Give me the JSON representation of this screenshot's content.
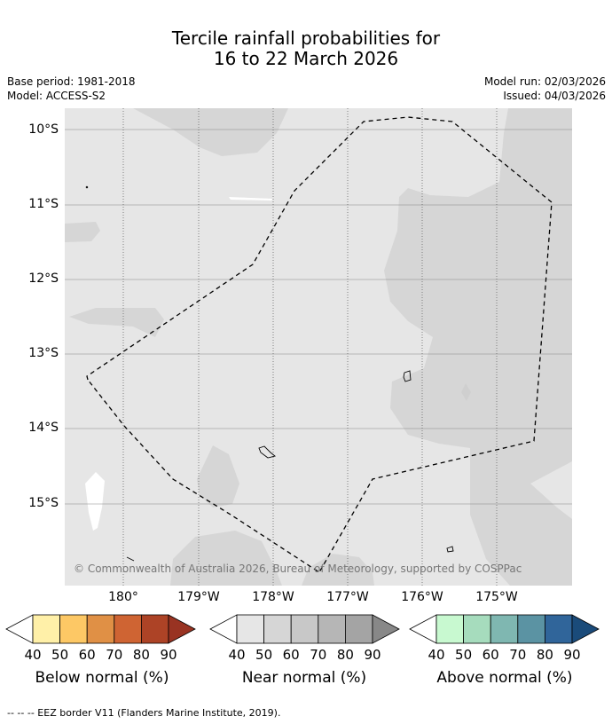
{
  "title": {
    "line1": "Tercile rainfall probabilities for",
    "line2": "16 to 22 March 2026"
  },
  "meta": {
    "base_period": "Base period: 1981-2018",
    "model": "Model: ACCESS-S2",
    "model_run": "Model run: 02/03/2026",
    "issued": "Issued: 04/03/2026"
  },
  "map": {
    "copyright": "© Commonwealth of Australia 2026, Bureau of Meteorology, supported by COSPPac",
    "lat_labels": [
      "10°S",
      "11°S",
      "12°S",
      "13°S",
      "14°S",
      "15°S"
    ],
    "lon_labels": [
      "180°",
      "179°W",
      "178°W",
      "177°W",
      "176°W",
      "175°W"
    ]
  },
  "colorbars": {
    "ticks": [
      "40",
      "50",
      "60",
      "70",
      "80",
      "90"
    ],
    "below": {
      "label": "Below normal (%)",
      "colors": [
        "#fff0a8",
        "#fdc865",
        "#e09045",
        "#cf6433",
        "#ad4326",
        "#993322"
      ]
    },
    "near": {
      "label": "Near normal (%)",
      "colors": [
        "#e6e6e6",
        "#d6d6d6",
        "#c8c8c8",
        "#b6b6b6",
        "#a4a4a4",
        "#888888"
      ]
    },
    "above": {
      "label": "Above normal (%)",
      "colors": [
        "#c8f9d0",
        "#a6dcbd",
        "#7fb7b1",
        "#5b93a3",
        "#30659a",
        "#1a4b7a"
      ]
    }
  },
  "footer": "--  --  -- EEZ border V11 (Flanders Marine Institute, 2019)."
}
